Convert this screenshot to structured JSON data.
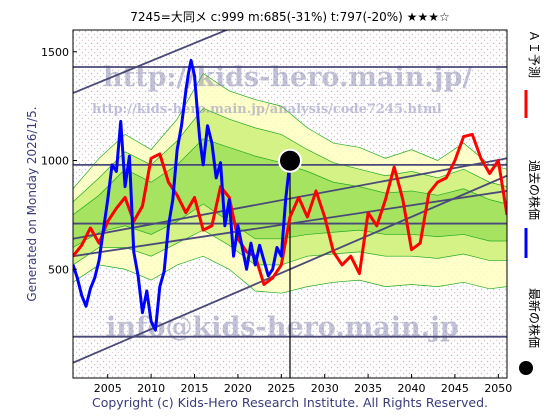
{
  "header": {
    "text": "7245=大同メ    c:999  m:685(-31%)  t:797(-20%)  ★★★☆"
  },
  "footer": "Copyright (c) Kids-Hero Research Institute. All Rights Reserved.",
  "watermarks": {
    "top_url": "http://kids-hero.main.jp/",
    "mid_url": "http://kids-hero.main.jp/analysis/code7245.html",
    "email": "info@kids-hero.main.jp"
  },
  "colors": {
    "forecast": "#ff0000",
    "past": "#0000ff",
    "latest_marker": "#000000",
    "trend_lines": "#4a4a78",
    "band_light": "#ffffc0",
    "band_mid": "#ccf07a",
    "band_dark": "#9ee05a",
    "band_lines": "#22aa22"
  },
  "chart_data": {
    "type": "line",
    "xlim": [
      2001,
      2051
    ],
    "ylim": [
      0,
      1600
    ],
    "x_ticks": [
      2005,
      2010,
      2015,
      2020,
      2025,
      2030,
      2035,
      2040,
      2045,
      2050
    ],
    "y_ticks": [
      500,
      1000,
      1500
    ],
    "grid": false,
    "y_axis_title": "Generated on Monday 2026/1/5.",
    "legend": [
      {
        "label": "ＡＩ予測",
        "color": "#ff0000",
        "style": "line"
      },
      {
        "label": "過去の株価",
        "color": "#0000ff",
        "style": "line"
      },
      {
        "label": "最新の株価",
        "color": "#000000",
        "style": "dot"
      }
    ],
    "latest": {
      "x": 2026.0,
      "y": 999
    },
    "horizontal_lines": [
      1430,
      980,
      710,
      190
    ],
    "trend_lines": [
      {
        "x": [
          2001,
          2051
        ],
        "y": [
          1310,
          2130
        ]
      },
      {
        "x": [
          2001,
          2051
        ],
        "y": [
          640,
          1010
        ]
      },
      {
        "x": [
          2001,
          2051
        ],
        "y": [
          560,
          860
        ]
      },
      {
        "x": [
          2001,
          2051
        ],
        "y": [
          70,
          930
        ]
      }
    ],
    "band_outer": {
      "x": [
        2001,
        2004,
        2007,
        2010,
        2013,
        2016,
        2019,
        2022,
        2025,
        2028,
        2031,
        2034,
        2037,
        2040,
        2043,
        2046,
        2049,
        2051
      ],
      "upper": [
        870,
        1010,
        1120,
        1050,
        1190,
        1400,
        1320,
        1280,
        1250,
        1150,
        1080,
        1060,
        1010,
        1050,
        1000,
        1080,
        980,
        960
      ],
      "lower": [
        440,
        520,
        500,
        450,
        520,
        560,
        500,
        400,
        390,
        420,
        440,
        450,
        420,
        430,
        420,
        440,
        410,
        420
      ]
    },
    "band_mid": {
      "x": [
        2001,
        2004,
        2007,
        2010,
        2013,
        2016,
        2019,
        2022,
        2025,
        2028,
        2031,
        2034,
        2037,
        2040,
        2043,
        2046,
        2049,
        2051
      ],
      "upper": [
        810,
        920,
        1040,
        980,
        1090,
        1240,
        1190,
        1150,
        1120,
        1050,
        990,
        960,
        930,
        950,
        920,
        960,
        900,
        880
      ],
      "lower": [
        520,
        600,
        600,
        560,
        620,
        680,
        610,
        520,
        520,
        560,
        570,
        580,
        560,
        560,
        550,
        570,
        540,
        540
      ]
    },
    "band_inner": {
      "x": [
        2001,
        2004,
        2007,
        2010,
        2013,
        2016,
        2019,
        2022,
        2025,
        2028,
        2031,
        2034,
        2037,
        2040,
        2043,
        2046,
        2049,
        2051
      ],
      "upper": [
        750,
        840,
        960,
        900,
        980,
        1100,
        1060,
        1020,
        990,
        950,
        900,
        880,
        850,
        860,
        840,
        870,
        820,
        800
      ],
      "lower": [
        600,
        670,
        700,
        660,
        720,
        800,
        720,
        640,
        640,
        660,
        670,
        680,
        660,
        660,
        650,
        660,
        630,
        630
      ]
    },
    "series": [
      {
        "name": "ＡＩ予測",
        "color": "#ff0000",
        "x": [
          2001,
          2002,
          2003,
          2004,
          2005,
          2006,
          2007,
          2008,
          2009,
          2010,
          2011,
          2012,
          2013,
          2014,
          2015,
          2016,
          2017,
          2018,
          2019,
          2020,
          2021,
          2022,
          2023,
          2024,
          2025,
          2026,
          2027,
          2028,
          2029,
          2030,
          2031,
          2032,
          2033,
          2034,
          2035,
          2036,
          2037,
          2038,
          2039,
          2040,
          2041,
          2042,
          2043,
          2044,
          2045,
          2046,
          2047,
          2048,
          2049,
          2050,
          2051
        ],
        "values": [
          560,
          610,
          690,
          620,
          720,
          780,
          830,
          720,
          790,
          1010,
          1030,
          900,
          840,
          760,
          830,
          680,
          700,
          880,
          830,
          640,
          580,
          560,
          430,
          460,
          520,
          740,
          830,
          740,
          860,
          740,
          580,
          520,
          560,
          480,
          760,
          700,
          820,
          970,
          820,
          590,
          620,
          850,
          900,
          920,
          1000,
          1110,
          1120,
          1010,
          940,
          1000,
          750
        ]
      },
      {
        "name": "過去の株価",
        "color": "#0000ff",
        "x": [
          2001,
          2001.5,
          2002,
          2002.5,
          2003,
          2003.5,
          2004,
          2004.5,
          2005,
          2005.5,
          2006,
          2006.5,
          2007,
          2007.5,
          2008,
          2008.5,
          2009,
          2009.5,
          2010,
          2010.5,
          2011,
          2011.5,
          2012,
          2012.5,
          2013,
          2013.5,
          2014,
          2014.3,
          2014.6,
          2015,
          2015.3,
          2015.6,
          2016,
          2016.5,
          2017,
          2017.5,
          2018,
          2018.5,
          2019,
          2019.5,
          2020,
          2020.5,
          2021,
          2021.5,
          2022,
          2022.5,
          2023,
          2023.5,
          2024,
          2024.5,
          2025,
          2025.5,
          2026
        ],
        "values": [
          520,
          460,
          380,
          330,
          410,
          460,
          540,
          680,
          820,
          980,
          950,
          1180,
          880,
          1020,
          580,
          470,
          300,
          400,
          260,
          220,
          420,
          490,
          700,
          820,
          1050,
          1160,
          1320,
          1400,
          1460,
          1390,
          1240,
          1100,
          980,
          1160,
          1080,
          920,
          990,
          700,
          820,
          560,
          700,
          600,
          500,
          620,
          520,
          610,
          540,
          470,
          500,
          600,
          560,
          820,
          999
        ]
      }
    ]
  }
}
